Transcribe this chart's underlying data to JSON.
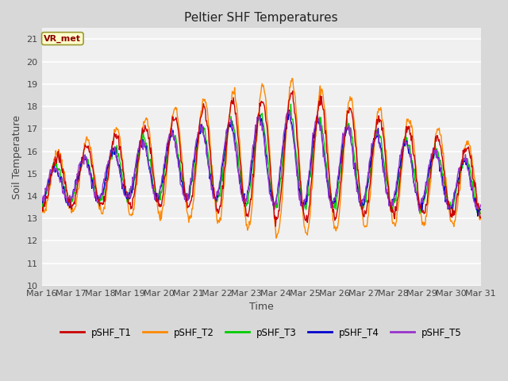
{
  "title": "Peltier SHF Temperatures",
  "xlabel": "Time",
  "ylabel": "Soil Temperature",
  "ylim": [
    10.0,
    21.5
  ],
  "yticks": [
    10.0,
    11.0,
    12.0,
    13.0,
    14.0,
    15.0,
    16.0,
    17.0,
    18.0,
    19.0,
    20.0,
    21.0
  ],
  "bg_color": "#f0f0f0",
  "plot_bg": "#f0f0f0",
  "series_colors": {
    "pSHF_T1": "#cc0000",
    "pSHF_T2": "#ff8800",
    "pSHF_T3": "#00cc00",
    "pSHF_T4": "#0000cc",
    "pSHF_T5": "#9933cc"
  },
  "xtick_labels": [
    "Mar 16",
    "Mar 17",
    "Mar 18",
    "Mar 19",
    "Mar 20",
    "Mar 21",
    "Mar 22",
    "Mar 23",
    "Mar 24",
    "Mar 25",
    "Mar 26",
    "Mar 27",
    "Mar 28",
    "Mar 29",
    "Mar 30",
    "Mar 31"
  ],
  "annotation_text": "VR_met"
}
